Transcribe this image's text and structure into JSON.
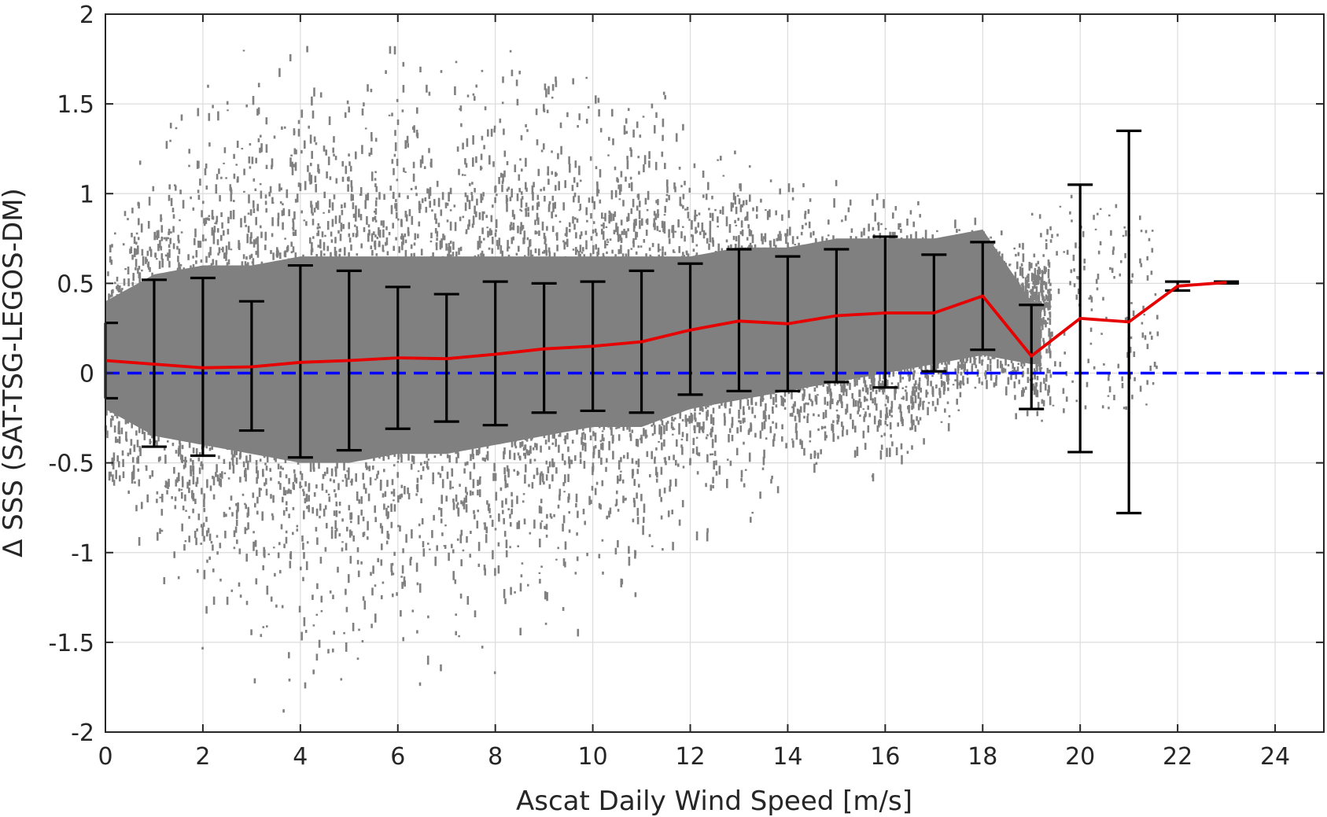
{
  "chart_data": {
    "type": "scatter",
    "title": "",
    "xlabel": "Ascat Daily Wind Speed [m/s]",
    "ylabel": "Δ SSS (SAT-TSG-LEGOS-DM)",
    "xlim": [
      0,
      25
    ],
    "ylim": [
      -2,
      2
    ],
    "xticks": [
      0,
      2,
      4,
      6,
      8,
      10,
      12,
      14,
      16,
      18,
      20,
      22,
      24
    ],
    "xtick_labels": [
      "0",
      "2",
      "4",
      "6",
      "8",
      "10",
      "12",
      "14",
      "16",
      "18",
      "20",
      "22",
      "24"
    ],
    "yticks": [
      -2,
      -1.5,
      -1,
      -0.5,
      0,
      0.5,
      1,
      1.5,
      2
    ],
    "ytick_labels": [
      "-2",
      "-1.5",
      "-1",
      "-0.5",
      "0",
      "0.5",
      "1",
      "1.5",
      "2"
    ],
    "grid": true,
    "scatter_color": "#808080",
    "scatter_envelope": {
      "x": [
        0,
        1,
        2,
        3,
        4,
        5,
        6,
        7,
        8,
        9,
        10,
        11,
        12,
        13,
        14,
        15,
        16,
        17,
        18,
        19
      ],
      "core_low": [
        -0.2,
        -0.35,
        -0.4,
        -0.45,
        -0.5,
        -0.5,
        -0.45,
        -0.45,
        -0.4,
        -0.35,
        -0.3,
        -0.3,
        -0.2,
        -0.15,
        -0.1,
        -0.05,
        0.0,
        0.05,
        0.1,
        0.05
      ],
      "core_high": [
        0.4,
        0.55,
        0.6,
        0.6,
        0.65,
        0.65,
        0.65,
        0.65,
        0.65,
        0.65,
        0.65,
        0.65,
        0.65,
        0.7,
        0.7,
        0.75,
        0.75,
        0.75,
        0.8,
        0.4
      ],
      "spread_low": [
        -0.6,
        -1.3,
        -1.8,
        -1.9,
        -2.0,
        -2.0,
        -1.9,
        -1.9,
        -1.9,
        -1.7,
        -1.5,
        -1.3,
        -1.0,
        -0.9,
        -0.7,
        -0.6,
        -0.8,
        -0.5,
        -0.2,
        -0.35
      ],
      "spread_high": [
        0.9,
        1.5,
        2.0,
        2.0,
        2.0,
        2.0,
        2.0,
        2.0,
        2.0,
        2.0,
        1.9,
        1.7,
        1.6,
        1.4,
        1.2,
        1.1,
        1.1,
        0.95,
        0.95,
        0.8
      ]
    },
    "series": [
      {
        "name": "",
        "type": "line",
        "color": "#e60000",
        "x": [
          0,
          1,
          2,
          3,
          4,
          5,
          6,
          7,
          8,
          9,
          10,
          11,
          12,
          13,
          14,
          15,
          16,
          17,
          18,
          19,
          20,
          21,
          22,
          23
        ],
        "y": [
          0.07,
          0.05,
          0.03,
          0.035,
          0.06,
          0.07,
          0.085,
          0.08,
          0.105,
          0.135,
          0.15,
          0.175,
          0.24,
          0.29,
          0.275,
          0.32,
          0.335,
          0.335,
          0.43,
          0.095,
          0.305,
          0.285,
          0.485,
          0.505
        ]
      },
      {
        "name": "",
        "type": "errorbar",
        "color": "#000000",
        "x": [
          0,
          1,
          2,
          3,
          4,
          5,
          6,
          7,
          8,
          9,
          10,
          11,
          12,
          13,
          14,
          15,
          16,
          17,
          18,
          19,
          20,
          21,
          22,
          23
        ],
        "low": [
          -0.14,
          -0.41,
          -0.46,
          -0.32,
          -0.47,
          -0.43,
          -0.31,
          -0.27,
          -0.29,
          -0.22,
          -0.21,
          -0.22,
          -0.12,
          -0.1,
          -0.1,
          -0.05,
          -0.08,
          0.01,
          0.13,
          -0.2,
          -0.44,
          -0.78,
          0.46,
          0.5
        ],
        "high": [
          0.28,
          0.52,
          0.53,
          0.4,
          0.6,
          0.57,
          0.48,
          0.44,
          0.51,
          0.5,
          0.51,
          0.57,
          0.61,
          0.69,
          0.65,
          0.69,
          0.76,
          0.66,
          0.73,
          0.38,
          1.05,
          1.35,
          0.51,
          0.51
        ]
      },
      {
        "name": "",
        "type": "reference-line",
        "color": "#0000ff",
        "y": 0,
        "style": "dashed"
      }
    ]
  }
}
